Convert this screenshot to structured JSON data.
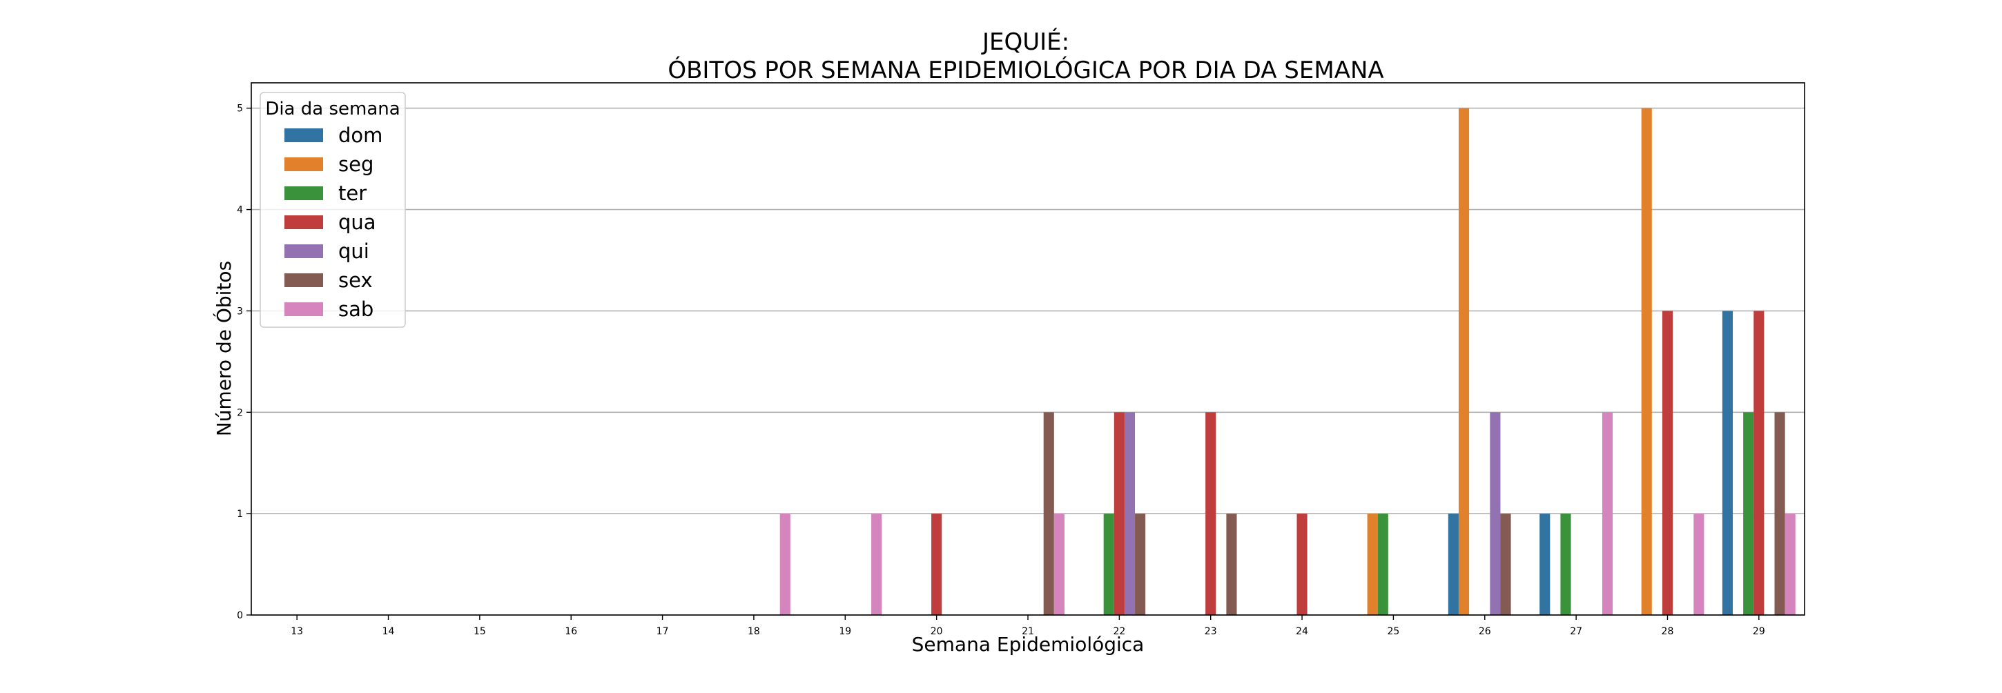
{
  "chart_data": {
    "type": "bar",
    "title_line1": "JEQUIÉ:",
    "title_line2": "ÓBITOS POR SEMANA EPIDEMIOLÓGICA POR DIA DA SEMANA",
    "xlabel": "Semana Epidemiológica",
    "ylabel": "Número de Óbitos",
    "ylim": [
      0,
      5.25
    ],
    "yticks": [
      0,
      1,
      2,
      3,
      4,
      5
    ],
    "grid": "horizontal",
    "legend": {
      "title": "Dia da semana",
      "placement": "top-left"
    },
    "categories": [
      "13",
      "14",
      "15",
      "16",
      "17",
      "18",
      "19",
      "20",
      "21",
      "22",
      "23",
      "24",
      "25",
      "26",
      "27",
      "28",
      "29"
    ],
    "series": [
      {
        "name": "dom",
        "color": "#3274a1",
        "values": [
          0,
          0,
          0,
          0,
          0,
          0,
          0,
          0,
          0,
          0,
          0,
          0,
          0,
          1,
          1,
          0,
          3
        ]
      },
      {
        "name": "seg",
        "color": "#e1812c",
        "values": [
          0,
          0,
          0,
          0,
          0,
          0,
          0,
          0,
          0,
          0,
          0,
          0,
          1,
          5,
          0,
          5,
          0
        ]
      },
      {
        "name": "ter",
        "color": "#3a923a",
        "values": [
          0,
          0,
          0,
          0,
          0,
          0,
          0,
          0,
          0,
          1,
          0,
          0,
          1,
          0,
          1,
          0,
          2
        ]
      },
      {
        "name": "qua",
        "color": "#c03d3e",
        "values": [
          0,
          0,
          0,
          0,
          0,
          0,
          0,
          1,
          0,
          2,
          2,
          1,
          0,
          0,
          0,
          3,
          3
        ]
      },
      {
        "name": "qui",
        "color": "#9372b2",
        "values": [
          0,
          0,
          0,
          0,
          0,
          0,
          0,
          0,
          0,
          2,
          0,
          0,
          0,
          2,
          0,
          0,
          0
        ]
      },
      {
        "name": "sex",
        "color": "#845b53",
        "values": [
          0,
          0,
          0,
          0,
          0,
          0,
          0,
          0,
          2,
          1,
          1,
          0,
          0,
          1,
          0,
          0,
          2
        ]
      },
      {
        "name": "sab",
        "color": "#d684bd",
        "values": [
          0,
          0,
          0,
          0,
          0,
          1,
          1,
          0,
          1,
          0,
          0,
          0,
          0,
          0,
          2,
          1,
          1
        ]
      }
    ]
  }
}
